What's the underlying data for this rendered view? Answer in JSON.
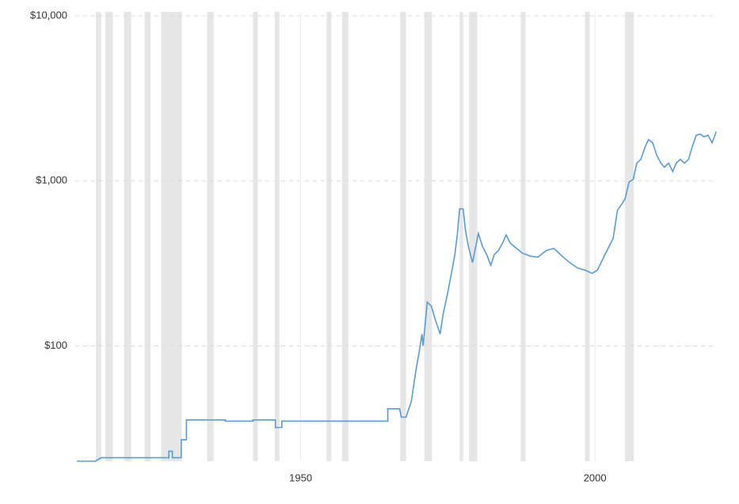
{
  "chart_data": {
    "type": "line",
    "yscale": "log",
    "color": "#5b9bd5",
    "band_color": "#e6e6e6",
    "grid": true,
    "x": [
      1912.0,
      1915.1,
      1916.1,
      1927.6,
      1927.6,
      1928.2,
      1928.2,
      1929.7,
      1929.7,
      1930.6,
      1930.6,
      1937.2,
      1937.2,
      1941.9,
      1941.9,
      1945.7,
      1945.7,
      1946.8,
      1946.8,
      1964.8,
      1964.8,
      1966.8,
      1967.1,
      1967.9,
      1968.8,
      1969.5,
      1970.2,
      1970.6,
      1970.8,
      1971.5,
      1972.2,
      1972.8,
      1973.7,
      1974.2,
      1974.9,
      1975.5,
      1976.2,
      1976.6,
      1977.0,
      1977.6,
      1978.0,
      1978.5,
      1979.2,
      1979.6,
      1980.2,
      1980.9,
      1981.6,
      1982.3,
      1982.9,
      1983.6,
      1984.3,
      1984.9,
      1985.6,
      1986.3,
      1987.6,
      1989.0,
      1990.3,
      1991.7,
      1993.0,
      1994.4,
      1995.7,
      1997.0,
      1998.4,
      1999.5,
      2000.4,
      2001.7,
      2003.1,
      2003.8,
      2005.1,
      2005.8,
      2006.5,
      2007.1,
      2007.8,
      2008.5,
      2009.1,
      2009.8,
      2010.5,
      2011.2,
      2011.8,
      2012.5,
      2013.2,
      2013.8,
      2014.5,
      2015.2,
      2015.9,
      2016.5,
      2017.2,
      2017.9,
      2018.5,
      2019.2,
      2019.9,
      2020.6
    ],
    "values": [
      20,
      20,
      21,
      21,
      23,
      23,
      21,
      21,
      27,
      27,
      35.6,
      35.6,
      35,
      35,
      35.6,
      35.6,
      32,
      32,
      35,
      35,
      41.6,
      41.6,
      37,
      37,
      46,
      68,
      95,
      118,
      100,
      184,
      174,
      147,
      118,
      155,
      204,
      262,
      358,
      470,
      676,
      676,
      500,
      400,
      320,
      378,
      480,
      400,
      358,
      308,
      358,
      378,
      420,
      470,
      420,
      400,
      366,
      350,
      345,
      378,
      390,
      350,
      320,
      297,
      287,
      275,
      287,
      358,
      448,
      660,
      775,
      986,
      1020,
      1280,
      1350,
      1600,
      1780,
      1700,
      1430,
      1280,
      1210,
      1280,
      1140,
      1280,
      1350,
      1280,
      1350,
      1600,
      1890,
      1920,
      1850,
      1890,
      1700,
      1990
    ],
    "recessions": [
      [
        1915.2,
        1916.1
      ],
      [
        1916.8,
        1918.1
      ],
      [
        1920.0,
        1921.2
      ],
      [
        1923.5,
        1924.5
      ],
      [
        1926.3,
        1929.8
      ],
      [
        1934.1,
        1935.2
      ],
      [
        1941.9,
        1942.7
      ],
      [
        1945.6,
        1946.4
      ],
      [
        1954.4,
        1955.2
      ],
      [
        1957.0,
        1958.1
      ],
      [
        1966.9,
        1967.9
      ],
      [
        1971.0,
        1972.3
      ],
      [
        1977.0,
        1977.6
      ],
      [
        1978.6,
        1980.0
      ],
      [
        1987.4,
        1988.2
      ],
      [
        1998.3,
        1999.1
      ],
      [
        2005.1,
        2006.6
      ]
    ],
    "xlim": [
      1911.7,
      2020.7
    ],
    "xticks": [
      1950,
      2000
    ],
    "ylim": [
      20,
      10000
    ],
    "yticks": [
      {
        "value": 100,
        "label": "$100"
      },
      {
        "value": 1000,
        "label": "$1,000"
      },
      {
        "value": 10000,
        "label": "$10,000"
      }
    ]
  }
}
